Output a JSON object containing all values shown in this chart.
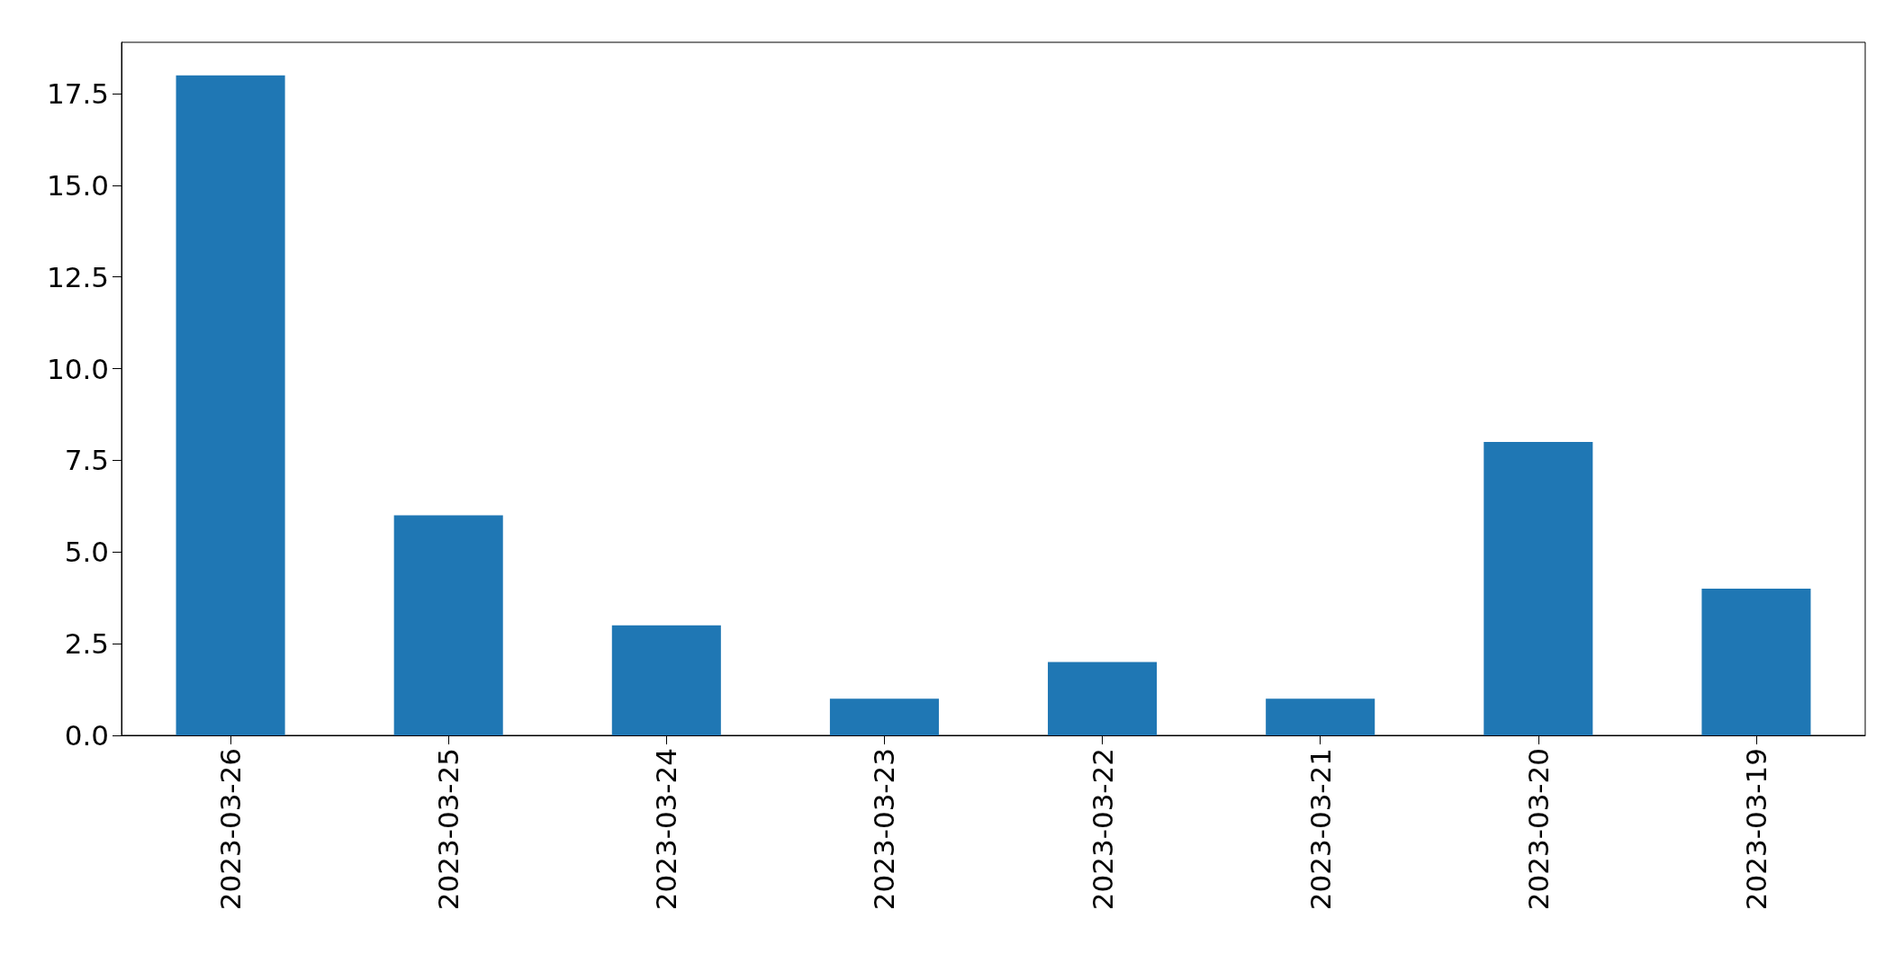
{
  "chart_data": {
    "type": "bar",
    "categories": [
      "2023-03-26",
      "2023-03-25",
      "2023-03-24",
      "2023-03-23",
      "2023-03-22",
      "2023-03-21",
      "2023-03-20",
      "2023-03-19"
    ],
    "values": [
      18,
      6,
      3,
      1,
      2,
      1,
      8,
      4
    ],
    "color": "#1f77b4",
    "ylim": [
      0,
      18.9
    ],
    "yticks": [
      {
        "value": 0,
        "label": "0.0"
      },
      {
        "value": 2.5,
        "label": "2.5"
      },
      {
        "value": 5,
        "label": "5.0"
      },
      {
        "value": 7.5,
        "label": "7.5"
      },
      {
        "value": 10,
        "label": "10.0"
      },
      {
        "value": 12.5,
        "label": "12.5"
      },
      {
        "value": 15,
        "label": "15.0"
      },
      {
        "value": 17.5,
        "label": "17.5"
      }
    ],
    "grid": false
  }
}
